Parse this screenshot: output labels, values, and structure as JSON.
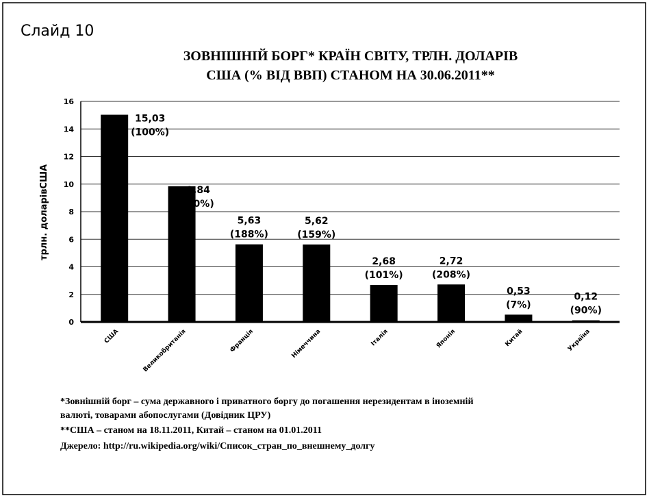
{
  "slide_label": "Слайд 10",
  "chart_data": {
    "type": "bar",
    "title": [
      "ЗОВНІШНІЙ  БОРГ* КРАЇН  СВІТУ, ТРЛН. ДОЛАРІВ",
      "США (% ВІД ВВП) СТАНОМ  НА 30.06.2011**"
    ],
    "y_label": "трлн. доларівСША",
    "categories": [
      "США",
      "Великобританія",
      "Франція",
      "Німеччина",
      "Італія",
      "Японія",
      "Китай",
      "Україна"
    ],
    "values": [
      15.03,
      9.84,
      5.63,
      5.62,
      2.68,
      2.72,
      0.53,
      0.12
    ],
    "value_labels": [
      "15,03",
      "9,84",
      "5,63",
      "5,62",
      "2,68",
      "2,72",
      "0,53",
      "0,12"
    ],
    "gdp_share_labels": [
      "(100%)",
      "(80%)",
      "(188%)",
      "(159%)",
      "(101%)",
      "(208%)",
      "(7%)",
      "(90%)"
    ],
    "color": "#000000",
    "ylim": [
      0,
      16
    ],
    "yticks": [
      0,
      2,
      4,
      6,
      8,
      10,
      12,
      14,
      16
    ],
    "grid": true
  },
  "notes": [
    "*Зовнішній борг – сума державного і приватного боргу до погашення нерезидентам в іноземній",
    "валюті, товарами абопослугами (Довідник ЦРУ)",
    "**США – станом на 18.11.2011, Китай – станом на 01.01.2011",
    "Джерело: http://ru.wikipedia.org/wiki/Список_стран_по_внешнему_долгу"
  ]
}
